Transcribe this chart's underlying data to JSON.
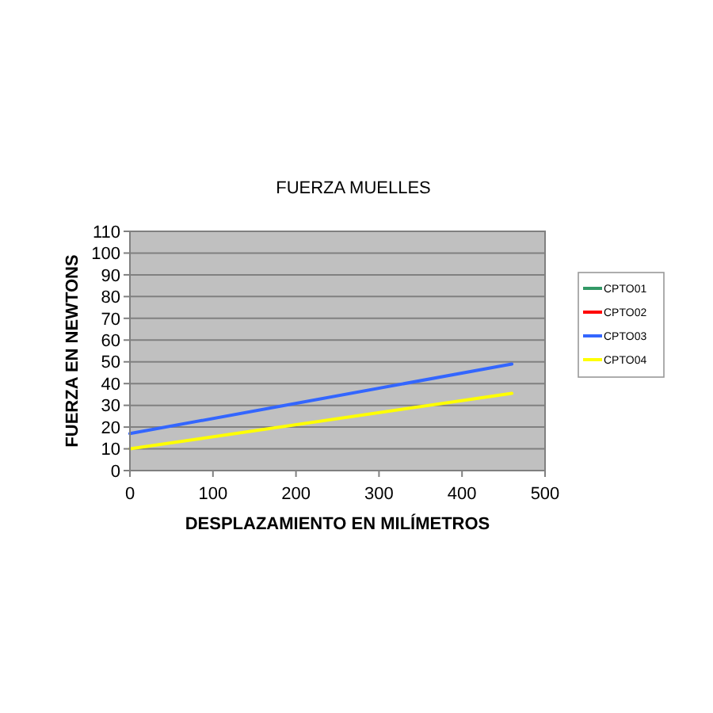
{
  "chart_data": {
    "type": "line",
    "title": "FUERZA MUELLES",
    "xlabel": "DESPLAZAMIENTO EN MILÍMETROS",
    "ylabel": "FUERZA EN NEWTONS",
    "x": [
      0,
      460
    ],
    "series": [
      {
        "name": "CPTO01",
        "color": "#339966",
        "values": [
          null,
          null
        ]
      },
      {
        "name": "CPTO02",
        "color": "#ff0000",
        "values": [
          null,
          null
        ]
      },
      {
        "name": "CPTO03",
        "color": "#3366ff",
        "values": [
          17,
          49
        ]
      },
      {
        "name": "CPTO04",
        "color": "#ffff00",
        "values": [
          10,
          35.5
        ]
      }
    ],
    "xlim": [
      0,
      500
    ],
    "xticks": [
      0,
      100,
      200,
      300,
      400,
      500
    ],
    "ylim": [
      0,
      110
    ],
    "yticks": [
      0,
      10,
      20,
      30,
      40,
      50,
      60,
      70,
      80,
      90,
      100,
      110
    ],
    "grid": "y",
    "legend": "right",
    "marker": "none",
    "line_style": "solid"
  }
}
